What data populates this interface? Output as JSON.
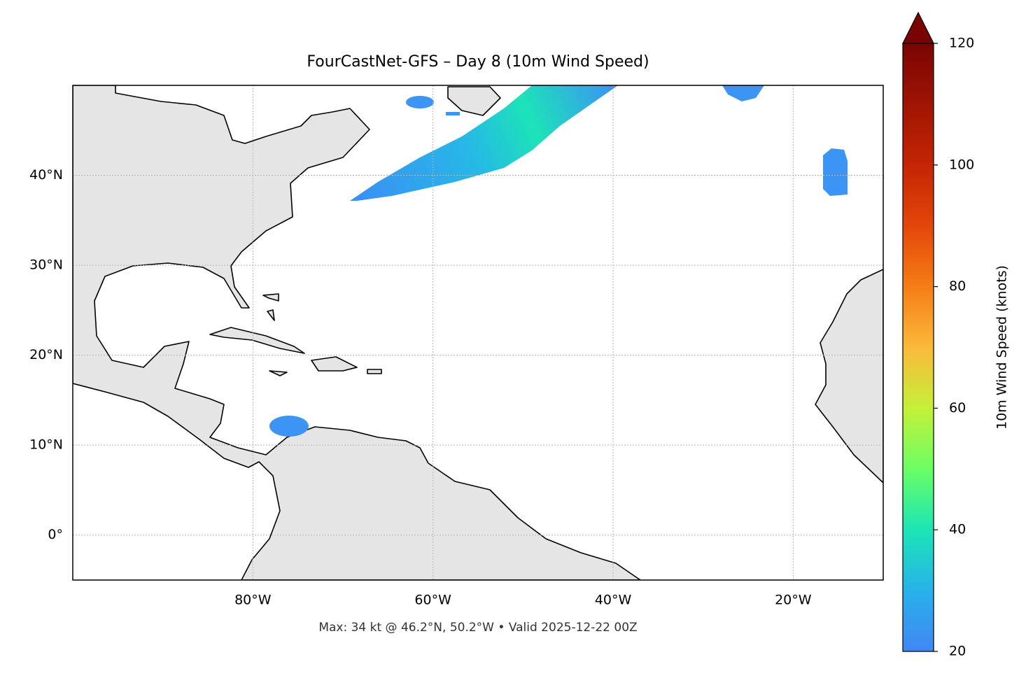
{
  "map": {
    "title": "FourCastNet-GFS – Day 8 (10m Wind Speed)",
    "note": "Max: 34 kt @ 46.2°N, 50.2°W • Valid 2025-12-22 00Z",
    "xlim": [
      -100,
      -10
    ],
    "ylim": [
      -5,
      50
    ],
    "xticks": [
      {
        "value": -80,
        "label": "80°W"
      },
      {
        "value": -60,
        "label": "60°W"
      },
      {
        "value": -40,
        "label": "40°W"
      },
      {
        "value": -20,
        "label": "20°W"
      }
    ],
    "yticks": [
      {
        "value": 0,
        "label": "0°"
      },
      {
        "value": 10,
        "label": "10°N"
      },
      {
        "value": 20,
        "label": "20°N"
      },
      {
        "value": 30,
        "label": "30°N"
      },
      {
        "value": 40,
        "label": "40°N"
      }
    ],
    "grid": true,
    "colorbar": {
      "label": "10m Wind Speed (knots)",
      "lim": [
        20,
        120
      ],
      "ticks": [
        20,
        40,
        60,
        80,
        100,
        120
      ],
      "extend": "max"
    }
  }
}
